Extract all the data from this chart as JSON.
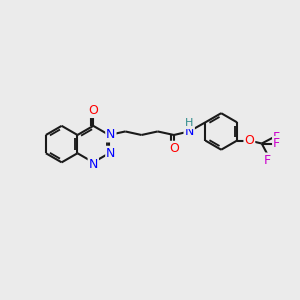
{
  "background_color": "#ebebeb",
  "bond_color": "#1a1a1a",
  "atom_colors": {
    "N": "#0000ff",
    "O": "#ff0000",
    "H": "#2e8b8b",
    "F": "#cc00cc"
  },
  "lw": 1.5,
  "fs": 9,
  "fig_size": [
    3.0,
    3.0
  ],
  "dpi": 100
}
